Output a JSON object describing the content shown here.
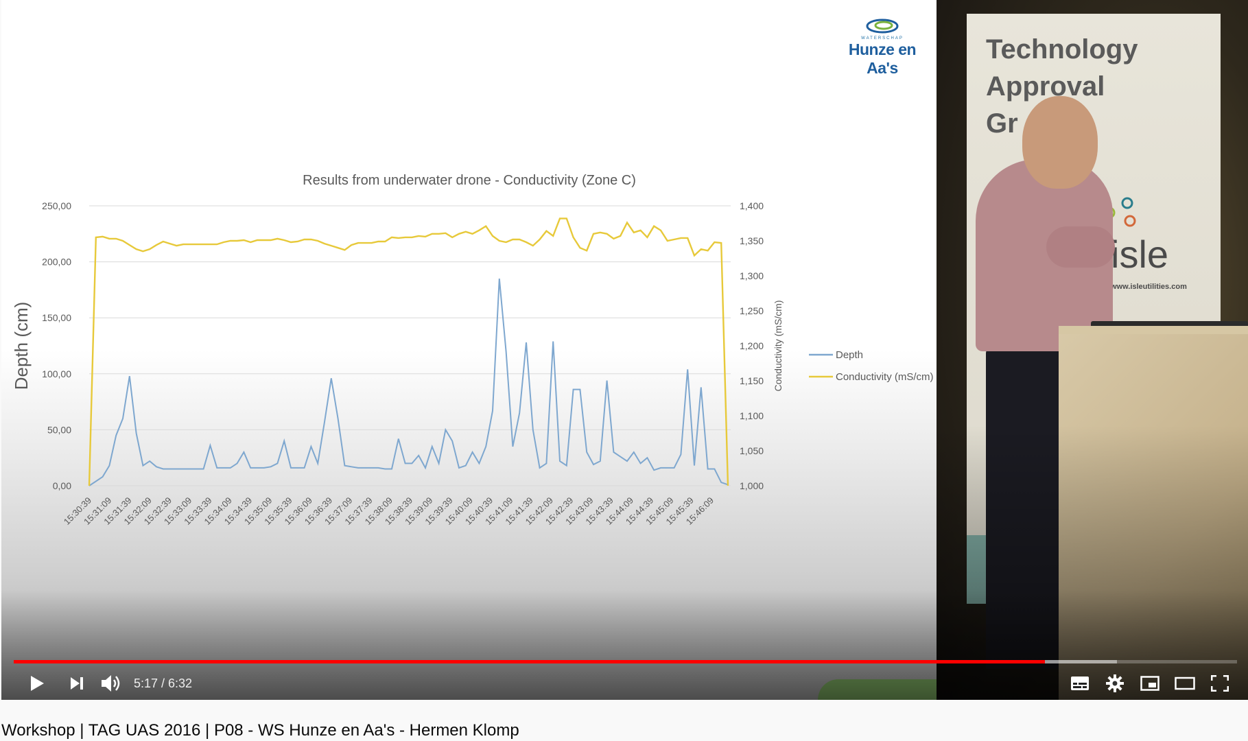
{
  "video": {
    "title": "Workshop | TAG UAS 2016 | P08 - WS Hunze en Aa's - Hermen Klomp",
    "current_time": "5:17",
    "duration": "6:32",
    "time_display": "5:17 / 6:32",
    "progress_fraction": 0.843,
    "buffered_fraction": 0.902
  },
  "colors": {
    "progress_played": "#ff0000",
    "depth_line": "#7ea7cf",
    "conductivity_line": "#e7c93a",
    "logo_blue": "#1f5f9e"
  },
  "slide": {
    "logo_subtext": "WATERSCHAP",
    "logo_name": "Hunze en Aa's"
  },
  "stage": {
    "banner_lines": [
      "Technology",
      "Approval",
      "Gr"
    ],
    "banner_brand": "isle",
    "banner_url": "www.isleutilities.com"
  },
  "controls": {
    "play_icon": "play-icon",
    "next_icon": "next-icon",
    "volume_icon": "volume-icon",
    "subtitles_icon": "subtitles-icon",
    "settings_icon": "gear-icon",
    "miniplayer_icon": "miniplayer-icon",
    "theater_icon": "theater-icon",
    "fullscreen_icon": "fullscreen-icon"
  },
  "chart_data": {
    "type": "line",
    "title": "Results from underwater drone - Conductivity (Zone C)",
    "ylabel": "Depth (cm)",
    "y2label": "Conductivity (mS/cm)",
    "ylim": [
      0,
      250
    ],
    "y2lim": [
      1000,
      1400
    ],
    "yticks": [
      "0,00",
      "50,00",
      "100,00",
      "150,00",
      "200,00",
      "250,00"
    ],
    "y2ticks": [
      "1,000",
      "1,050",
      "1,100",
      "1,150",
      "1,200",
      "1,250",
      "1,300",
      "1,350",
      "1,400"
    ],
    "xticks": [
      "15:30:39",
      "15:31:09",
      "15:31:39",
      "15:32:09",
      "15:32:39",
      "15:33:09",
      "15:33:39",
      "15:34:09",
      "15:34:39",
      "15:35:09",
      "15:35:39",
      "15:36:09",
      "15:36:39",
      "15:37:09",
      "15:37:39",
      "15:38:09",
      "15:38:39",
      "15:39:09",
      "15:39:39",
      "15:40:09",
      "15:40:39",
      "15:41:09",
      "15:41:39",
      "15:42:09",
      "15:42:39",
      "15:43:09",
      "15:43:39",
      "15:44:09",
      "15:44:39",
      "15:45:09",
      "15:45:39",
      "15:46:09"
    ],
    "grid": true,
    "legend": "right",
    "series": [
      {
        "name": "Depth",
        "axis": "left",
        "values": [
          0,
          4,
          8,
          18,
          45,
          60,
          98,
          47,
          18,
          22,
          17,
          15,
          15,
          15,
          15,
          15,
          15,
          15,
          36,
          16,
          16,
          16,
          20,
          30,
          16,
          16,
          16,
          17,
          20,
          40,
          16,
          16,
          16,
          35,
          20,
          57,
          96,
          60,
          18,
          17,
          16,
          16,
          16,
          16,
          15,
          15,
          42,
          20,
          20,
          27,
          16,
          35,
          20,
          50,
          40,
          16,
          18,
          30,
          20,
          35,
          67,
          185,
          120,
          35,
          65,
          128,
          50,
          16,
          20,
          129,
          22,
          18,
          86,
          86,
          30,
          19,
          22,
          94,
          30,
          26,
          22,
          30,
          20,
          25,
          14,
          16,
          16,
          16,
          28,
          104,
          18,
          88,
          15,
          15,
          3,
          1
        ]
      },
      {
        "name": "Conductivity (mS/cm)",
        "axis": "right",
        "values": [
          1000,
          1355,
          1356,
          1353,
          1353,
          1350,
          1344,
          1338,
          1335,
          1338,
          1344,
          1349,
          1346,
          1343,
          1345,
          1345,
          1345,
          1345,
          1345,
          1345,
          1348,
          1350,
          1350,
          1351,
          1348,
          1351,
          1351,
          1351,
          1353,
          1351,
          1348,
          1349,
          1352,
          1352,
          1350,
          1346,
          1343,
          1340,
          1337,
          1344,
          1347,
          1347,
          1347,
          1349,
          1349,
          1355,
          1354,
          1355,
          1355,
          1357,
          1356,
          1360,
          1360,
          1361,
          1355,
          1360,
          1363,
          1360,
          1365,
          1371,
          1357,
          1350,
          1348,
          1352,
          1352,
          1348,
          1343,
          1352,
          1364,
          1357,
          1382,
          1382,
          1355,
          1340,
          1336,
          1360,
          1362,
          1360,
          1353,
          1357,
          1376,
          1362,
          1365,
          1355,
          1371,
          1365,
          1350,
          1352,
          1354,
          1354,
          1329,
          1338,
          1336,
          1348,
          1347,
          1000
        ]
      }
    ]
  }
}
